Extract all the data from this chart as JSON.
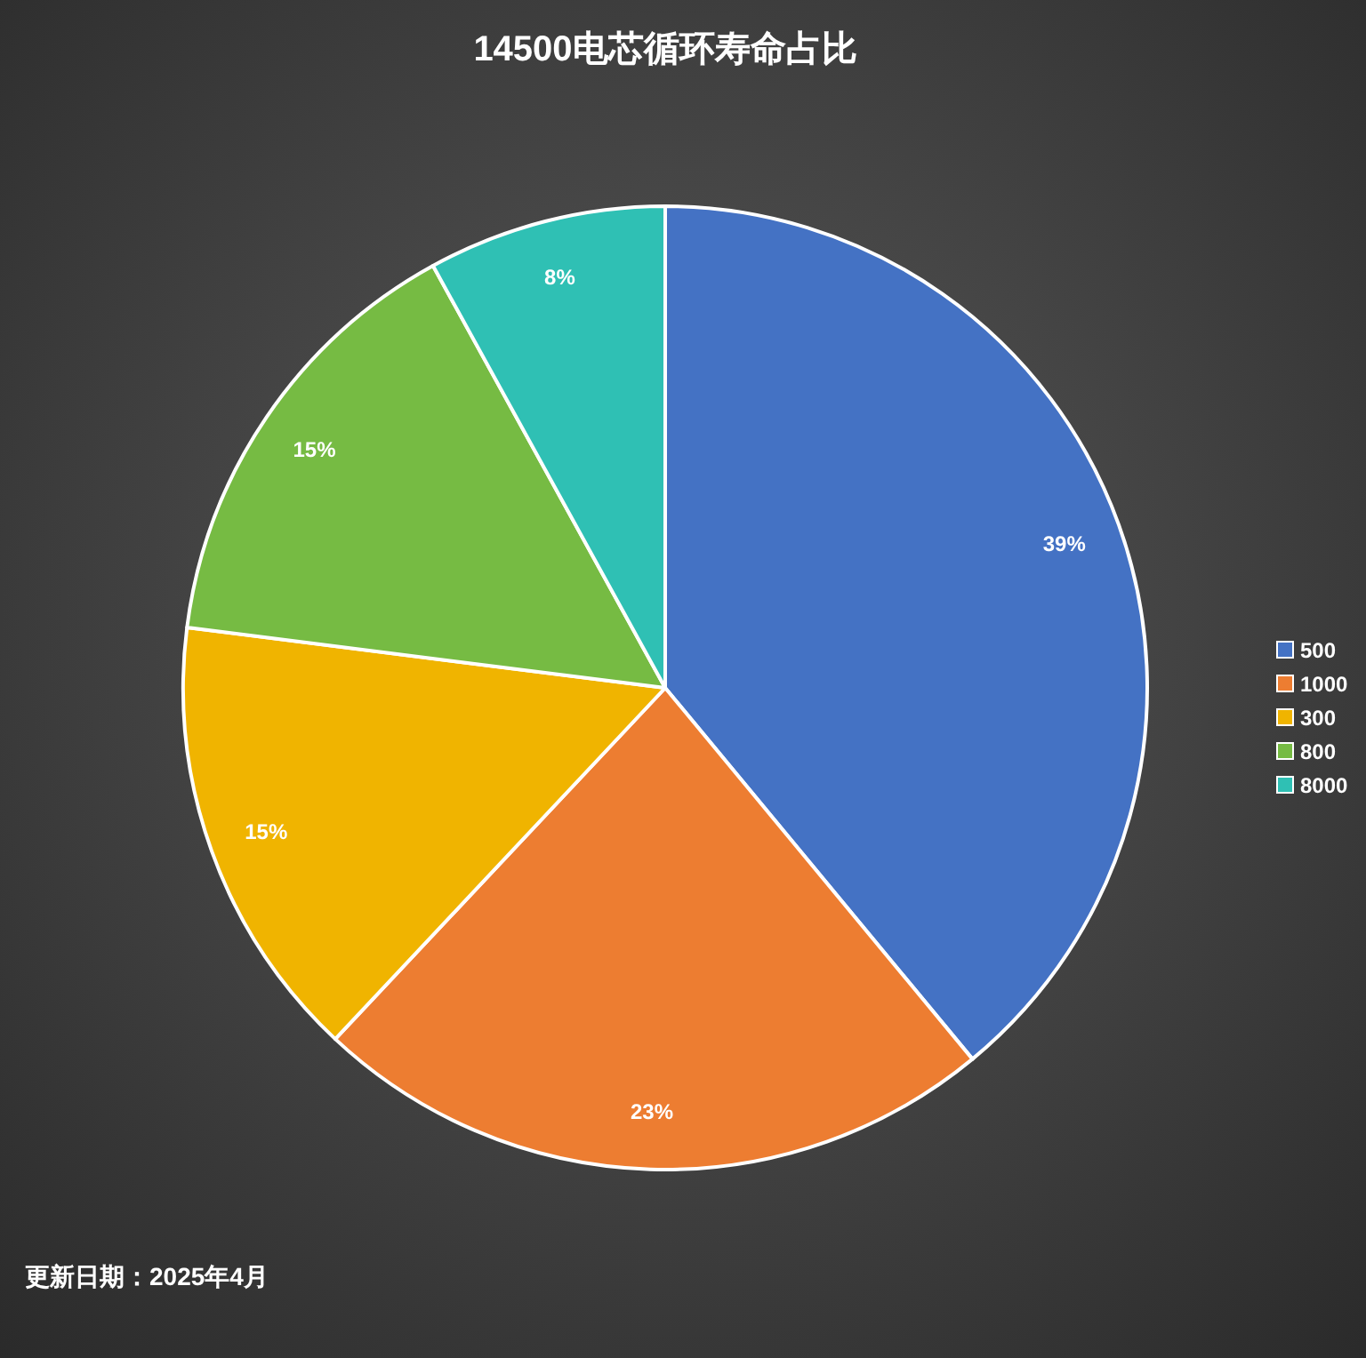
{
  "chart_data": {
    "type": "pie",
    "title": "14500电芯循环寿命占比",
    "categories": [
      "500",
      "1000",
      "300",
      "800",
      "8000"
    ],
    "values": [
      39,
      23,
      15,
      15,
      8
    ],
    "colors": [
      "#4472c4",
      "#ed7d31",
      "#f0b400",
      "#76bb43",
      "#2fc0b4"
    ],
    "value_labels": [
      "39%",
      "23%",
      "15%",
      "15%",
      "8%"
    ],
    "legend": "right",
    "annotations": [
      "更新日期：2025年4月"
    ]
  }
}
